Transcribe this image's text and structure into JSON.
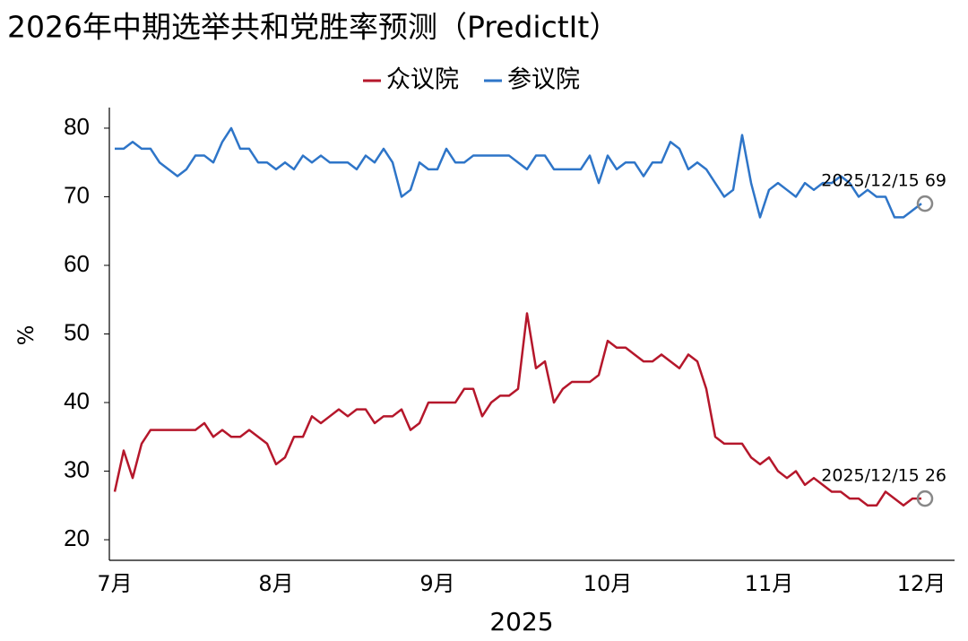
{
  "chart_data": {
    "type": "line",
    "title": "2026年中期选举共和党胜率预测（PredictIt）",
    "xlabel": "2025",
    "ylabel": "%",
    "categories": [
      "7月",
      null,
      null,
      null,
      null,
      null,
      null,
      null,
      null,
      null,
      null,
      null,
      null,
      null,
      null,
      null,
      null,
      null,
      "8月",
      null,
      null,
      null,
      null,
      null,
      null,
      null,
      null,
      null,
      null,
      null,
      null,
      null,
      null,
      null,
      null,
      null,
      "9月",
      null,
      null,
      null,
      null,
      null,
      null,
      null,
      null,
      null,
      null,
      null,
      null,
      null,
      null,
      null,
      null,
      null,
      null,
      "10月",
      null,
      null,
      null,
      null,
      null,
      null,
      null,
      null,
      null,
      null,
      null,
      null,
      null,
      null,
      null,
      null,
      null,
      "11月",
      null,
      null,
      null,
      null,
      null,
      null,
      null,
      null,
      null,
      null,
      null,
      null,
      null,
      null,
      null,
      null,
      "12月"
    ],
    "series": [
      {
        "name": "众议院",
        "color": "#b5172b",
        "values": [
          27,
          33,
          29,
          34,
          36,
          36,
          36,
          36,
          36,
          36,
          37,
          35,
          36,
          35,
          35,
          36,
          35,
          34,
          31,
          32,
          35,
          35,
          38,
          37,
          38,
          39,
          38,
          39,
          39,
          37,
          38,
          38,
          39,
          36,
          37,
          40,
          40,
          40,
          40,
          42,
          42,
          38,
          40,
          41,
          41,
          42,
          53,
          45,
          46,
          40,
          42,
          43,
          43,
          43,
          44,
          49,
          48,
          48,
          47,
          46,
          46,
          47,
          46,
          45,
          47,
          46,
          42,
          35,
          34,
          34,
          34,
          32,
          31,
          32,
          30,
          29,
          30,
          28,
          29,
          28,
          27,
          27,
          26,
          26,
          25,
          25,
          27,
          26,
          25,
          26,
          26
        ]
      },
      {
        "name": "参议院",
        "color": "#2e75c8",
        "values": [
          77,
          77,
          78,
          77,
          77,
          75,
          74,
          73,
          74,
          76,
          76,
          75,
          78,
          80,
          77,
          77,
          75,
          75,
          74,
          75,
          74,
          76,
          75,
          76,
          75,
          75,
          75,
          74,
          76,
          75,
          77,
          75,
          70,
          71,
          75,
          74,
          74,
          77,
          75,
          75,
          76,
          76,
          76,
          76,
          76,
          75,
          74,
          76,
          76,
          74,
          74,
          74,
          74,
          76,
          72,
          76,
          74,
          75,
          75,
          73,
          75,
          75,
          78,
          77,
          74,
          75,
          74,
          72,
          70,
          71,
          79,
          72,
          67,
          71,
          72,
          71,
          70,
          72,
          71,
          72,
          72,
          73,
          72,
          70,
          71,
          70,
          70,
          67,
          67,
          68,
          69
        ]
      }
    ],
    "annotations": [
      {
        "series": 1,
        "text": "2025/12/15 69"
      },
      {
        "series": 0,
        "text": "2025/12/15 26"
      }
    ],
    "ylim": [
      17,
      83
    ],
    "yticks": [
      20,
      30,
      40,
      50,
      60,
      70,
      80
    ],
    "grid": false,
    "legend": "top"
  }
}
